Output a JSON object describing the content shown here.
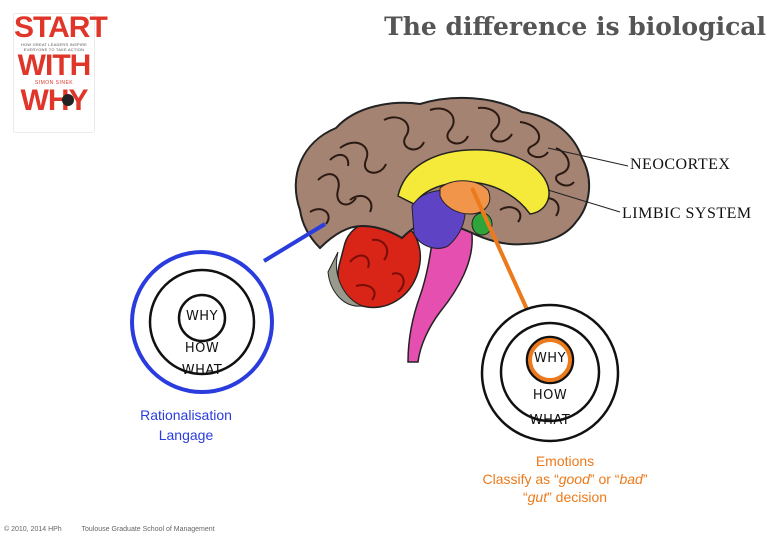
{
  "slide": {
    "title": "The difference is biological",
    "footer": {
      "copyright": "© 2010, 2014 HPh",
      "institution": "Toulouse Graduate School of Management"
    }
  },
  "book": {
    "line1": "START",
    "line2": "WITH",
    "line3": "WHY",
    "subtitle": "HOW GREAT LEADERS INSPIRE EVERYONE TO TAKE ACTION",
    "author": "SIMON SINEK"
  },
  "brain": {
    "labels": {
      "neocortex": "NEOCORTEX",
      "limbic": "LIMBIC  SYSTEM"
    },
    "colors": {
      "neocortex": "#a48373",
      "limbic": "#f5e93a",
      "cerebellum": "#d92418",
      "brainstem": "#e44fb0",
      "midbrain": "#5e43c4",
      "amygdala": "#2ea43a",
      "thalamus": "#f0954a"
    }
  },
  "circles_left": {
    "inner": "WHY",
    "middle": "HOW",
    "outer": "WHAT",
    "highlight_color": "#2a3cdd",
    "caption_line1": "Rationalisation",
    "caption_line2": "Langage"
  },
  "circles_right": {
    "inner": "WHY",
    "middle": "HOW",
    "outer": "WHAT",
    "highlight_color": "#ec7a1c",
    "caption_line1": "Emotions",
    "caption_line2_prefix": "Classify as “",
    "caption_good": "good",
    "caption_line2_mid": "” or “",
    "caption_bad": "bad",
    "caption_line2_suffix": "”",
    "caption_line3_prefix": "“",
    "caption_gut": "gut",
    "caption_line3_suffix": "” decision"
  }
}
